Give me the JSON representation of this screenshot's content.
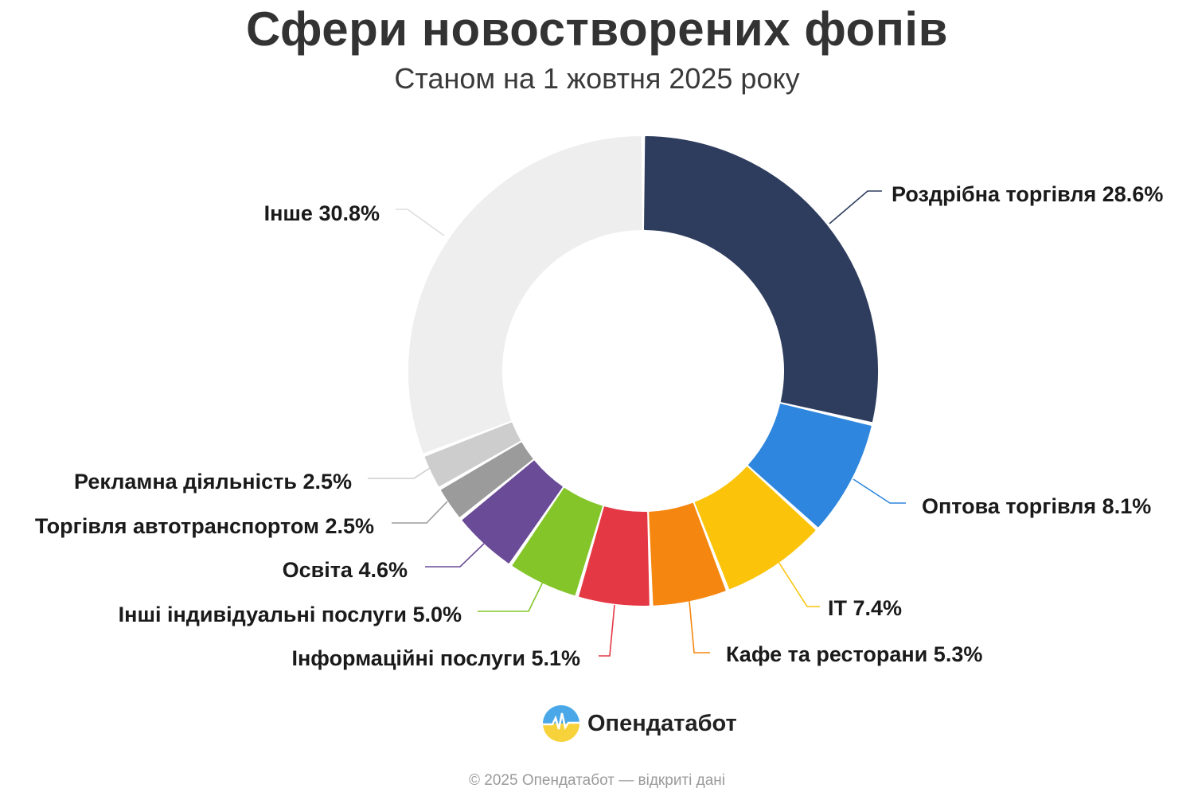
{
  "header": {
    "title": "Сфери новостворених фопів",
    "subtitle": "Станом на 1 жовтня 2025 року"
  },
  "chart_data": {
    "type": "pie",
    "donut": true,
    "title": "Сфери новостворених фопів",
    "subtitle": "Станом на 1 жовтня 2025 року",
    "unit": "%",
    "slices": [
      {
        "label": "Роздрібна торгівля",
        "value": 28.6,
        "display": "Роздрібна торгівля 28.6%",
        "color": "#2e3d5e"
      },
      {
        "label": "Оптова торгівля",
        "value": 8.1,
        "display": "Оптова торгівля 8.1%",
        "color": "#2e86de"
      },
      {
        "label": "IT",
        "value": 7.4,
        "display": "IT 7.4%",
        "color": "#fbc40a"
      },
      {
        "label": "Кафе та ресторани",
        "value": 5.3,
        "display": "Кафе та ресторани 5.3%",
        "color": "#f5860f"
      },
      {
        "label": "Інформаційні послуги",
        "value": 5.1,
        "display": "Інформаційні послуги 5.1%",
        "color": "#e53845"
      },
      {
        "label": "Інші індивідуальні послуги",
        "value": 5.0,
        "display": "Інші індивідуальні послуги 5.0%",
        "color": "#84c52a"
      },
      {
        "label": "Освіта",
        "value": 4.6,
        "display": "Освіта 4.6%",
        "color": "#6a4b97"
      },
      {
        "label": "Торгівля автотранспортом",
        "value": 2.5,
        "display": "Торгівля автотранспортом 2.5%",
        "color": "#9b9b9b"
      },
      {
        "label": "Рекламна діяльність",
        "value": 2.5,
        "display": "Рекламна діяльність 2.5%",
        "color": "#cdcdcd"
      },
      {
        "label": "Інше",
        "value": 30.8,
        "display": "Інше 30.8%",
        "color": "#eeeeee"
      }
    ]
  },
  "branding": {
    "logo_text": "Опендатабот",
    "logo_icon": "opendatabot-logo-icon"
  },
  "footer": {
    "text": "© 2025 Опендатабот — відкриті дані"
  }
}
